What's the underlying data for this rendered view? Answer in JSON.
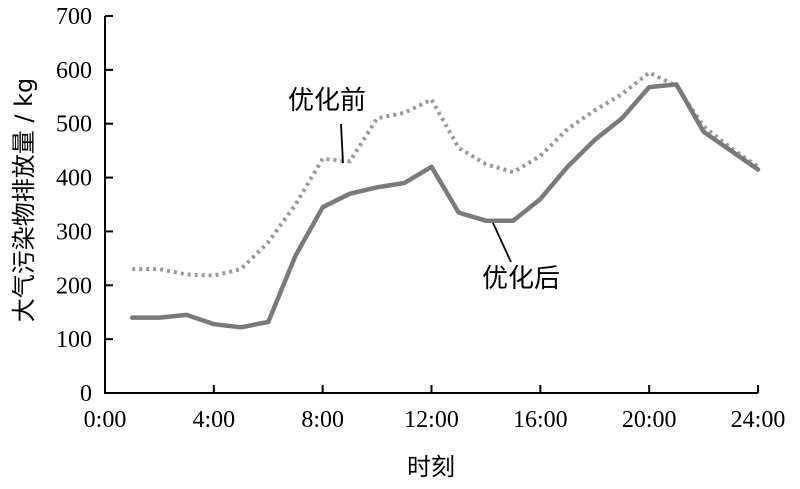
{
  "chart_data": {
    "type": "line",
    "xlabel": "时刻",
    "ylabel": "大气污染物排放量 / kg",
    "xlim": [
      0,
      24
    ],
    "ylim": [
      0,
      700
    ],
    "x_ticks": [
      0,
      4,
      8,
      12,
      16,
      20,
      24
    ],
    "x_tick_labels": [
      "0:00",
      "4:00",
      "8:00",
      "12:00",
      "16:00",
      "20:00",
      "24:00"
    ],
    "y_ticks": [
      0,
      100,
      200,
      300,
      400,
      500,
      600,
      700
    ],
    "y_tick_labels": [
      "0",
      "100",
      "200",
      "300",
      "400",
      "500",
      "600",
      "700"
    ],
    "grid": false,
    "x": [
      1,
      2,
      3,
      4,
      5,
      6,
      7,
      8,
      9,
      10,
      11,
      12,
      13,
      14,
      15,
      16,
      17,
      18,
      19,
      20,
      21,
      22,
      23,
      24
    ],
    "series": [
      {
        "name": "优化前",
        "style": "dotted",
        "color": "#999999",
        "values": [
          230,
          230,
          220,
          218,
          230,
          280,
          350,
          435,
          430,
          510,
          520,
          545,
          455,
          425,
          410,
          440,
          490,
          525,
          555,
          595,
          570,
          495,
          455,
          420
        ]
      },
      {
        "name": "优化后",
        "style": "solid",
        "color": "#7a7a7a",
        "values": [
          140,
          140,
          145,
          128,
          122,
          132,
          255,
          345,
          370,
          382,
          390,
          420,
          335,
          320,
          320,
          360,
          420,
          470,
          510,
          568,
          573,
          485,
          450,
          415
        ]
      }
    ]
  }
}
